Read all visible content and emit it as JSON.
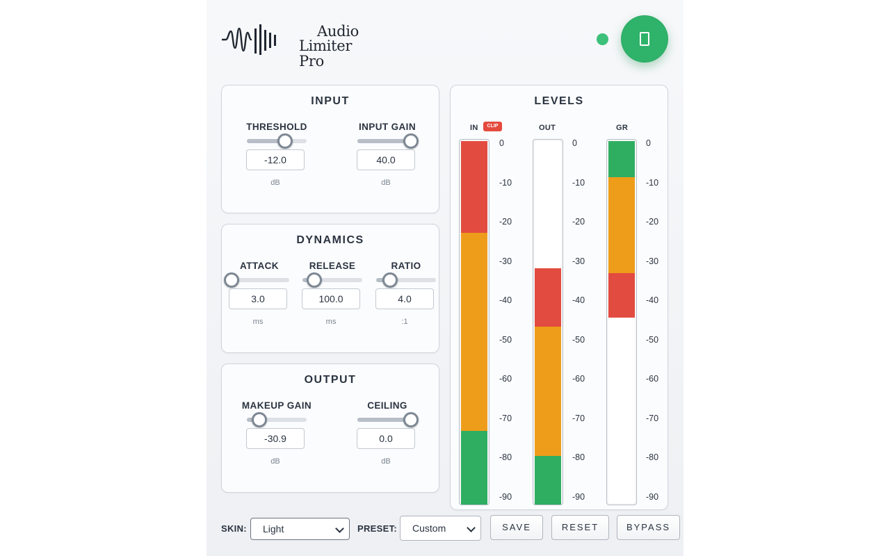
{
  "app": {
    "logo_line1": "Audio",
    "logo_line2": "Limiter Pro",
    "power_icon": "power-icon",
    "status_color": "#3cc07a",
    "power_color": "#2fb36a"
  },
  "input": {
    "title": "INPUT",
    "threshold": {
      "label": "THRESHOLD",
      "value": "-12.0",
      "unit": "dB",
      "fraction": 0.64
    },
    "input_gain": {
      "label": "INPUT GAIN",
      "value": "40.0",
      "unit": "dB",
      "fraction": 0.89
    }
  },
  "dynamics": {
    "title": "DYNAMICS",
    "attack": {
      "label": "ATTACK",
      "value": "3.0",
      "unit": "ms",
      "fraction": 0.04
    },
    "release": {
      "label": "RELEASE",
      "value": "100.0",
      "unit": "ms",
      "fraction": 0.2
    },
    "ratio": {
      "label": "RATIO",
      "value": "4.0",
      "unit": ":1",
      "fraction": 0.23
    }
  },
  "output": {
    "title": "OUTPUT",
    "makeup_gain": {
      "label": "MAKEUP GAIN",
      "value": "-30.9",
      "unit": "dB",
      "fraction": 0.21
    },
    "ceiling": {
      "label": "CEILING",
      "value": "0.0",
      "unit": "dB",
      "fraction": 0.89
    }
  },
  "levels": {
    "title": "LEVELS",
    "scale": [
      "0",
      "-10",
      "-20",
      "-30",
      "-40",
      "-50",
      "-60",
      "-70",
      "-80",
      "-90"
    ],
    "clip_label": "CLIP",
    "meters": [
      {
        "label": "IN",
        "segments": [
          {
            "color": "red",
            "from_db": 0,
            "to_db": -23.5
          },
          {
            "color": "orange",
            "from_db": -23.5,
            "to_db": -74.2
          },
          {
            "color": "green",
            "from_db": -74.2,
            "to_db": -93
          }
        ]
      },
      {
        "label": "OUT",
        "segments": [
          {
            "color": "red",
            "from_db": -32.5,
            "to_db": -47.5
          },
          {
            "color": "orange",
            "from_db": -47.5,
            "to_db": -80.5
          },
          {
            "color": "green",
            "from_db": -80.5,
            "to_db": -93
          }
        ]
      },
      {
        "label": "GR",
        "segments": [
          {
            "color": "green",
            "from_db": 0,
            "to_db": -9.3
          },
          {
            "color": "orange",
            "from_db": -9.3,
            "to_db": -33.8
          },
          {
            "color": "red",
            "from_db": -33.8,
            "to_db": -45.2
          }
        ]
      }
    ]
  },
  "footer": {
    "skin_label": "SKIN:",
    "skin_value": "Light",
    "preset_label": "PRESET:",
    "preset_value": "Custom",
    "save": "SAVE",
    "reset": "RESET",
    "bypass": "BYPASS"
  }
}
